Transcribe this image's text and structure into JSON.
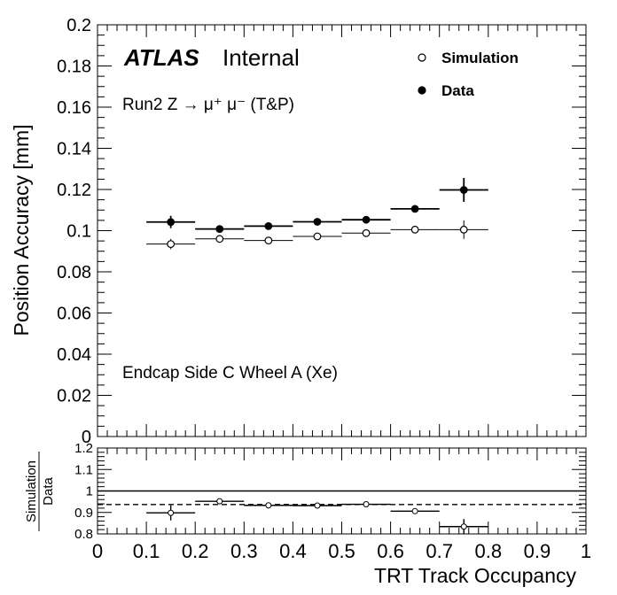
{
  "chart_data": [
    {
      "type": "scatter",
      "panel": "main",
      "ylabel": "Position Accuracy [mm]",
      "ylim": [
        0,
        0.2
      ],
      "xlim": [
        0,
        1
      ],
      "y_ticks": [
        "0",
        "0.02",
        "0.04",
        "0.06",
        "0.08",
        "0.1",
        "0.12",
        "0.14",
        "0.16",
        "0.18",
        "0.2"
      ],
      "annotations": {
        "experiment": "ATLAS",
        "status": "Internal",
        "process": "Run2 Z → μ⁺ μ⁻ (T&P)",
        "region": "Endcap Side C Wheel A (Xe)"
      },
      "legend_position": "top-right",
      "series": [
        {
          "name": "Simulation",
          "marker": "open-circle",
          "x": [
            0.15,
            0.25,
            0.35,
            0.45,
            0.55,
            0.65,
            0.75
          ],
          "x_halfwidth": [
            0.05,
            0.05,
            0.05,
            0.05,
            0.05,
            0.05,
            0.05
          ],
          "y": [
            0.0935,
            0.096,
            0.0952,
            0.0972,
            0.0988,
            0.1005,
            0.1005
          ],
          "y_err": [
            0.0025,
            0.001,
            0.0008,
            0.0008,
            0.0008,
            0.001,
            0.0045
          ]
        },
        {
          "name": "Data",
          "marker": "filled-circle",
          "x": [
            0.15,
            0.25,
            0.35,
            0.45,
            0.55,
            0.65,
            0.75
          ],
          "x_halfwidth": [
            0.05,
            0.05,
            0.05,
            0.05,
            0.05,
            0.05,
            0.05
          ],
          "y": [
            0.1042,
            0.1008,
            0.1022,
            0.1043,
            0.1053,
            0.1106,
            0.1198
          ],
          "y_err": [
            0.003,
            0.0012,
            0.0012,
            0.0012,
            0.001,
            0.0012,
            0.0058
          ]
        }
      ]
    },
    {
      "type": "scatter",
      "panel": "ratio",
      "ylabel_num": "Simulation",
      "ylabel_den": "Data",
      "xlabel": "TRT Track Occupancy",
      "ylim": [
        0.8,
        1.2
      ],
      "xlim": [
        0,
        1
      ],
      "y_ticks": [
        "0.8",
        "0.9",
        "1",
        "1.1",
        "1.2"
      ],
      "x_ticks": [
        "0",
        "0.1",
        "0.2",
        "0.3",
        "0.4",
        "0.5",
        "0.6",
        "0.7",
        "0.8",
        "0.9",
        "1"
      ],
      "reference_lines": [
        1.0,
        0.937
      ],
      "series": [
        {
          "name": "",
          "x": [
            0.15,
            0.25,
            0.35,
            0.45,
            0.55,
            0.65,
            0.75
          ],
          "x_halfwidth": [
            0.05,
            0.05,
            0.05,
            0.05,
            0.05,
            0.05,
            0.05
          ],
          "y": [
            0.898,
            0.952,
            0.933,
            0.932,
            0.938,
            0.906,
            0.834
          ],
          "y_err": [
            0.035,
            0.008,
            0.006,
            0.006,
            0.006,
            0.006,
            0.035
          ]
        }
      ]
    }
  ]
}
